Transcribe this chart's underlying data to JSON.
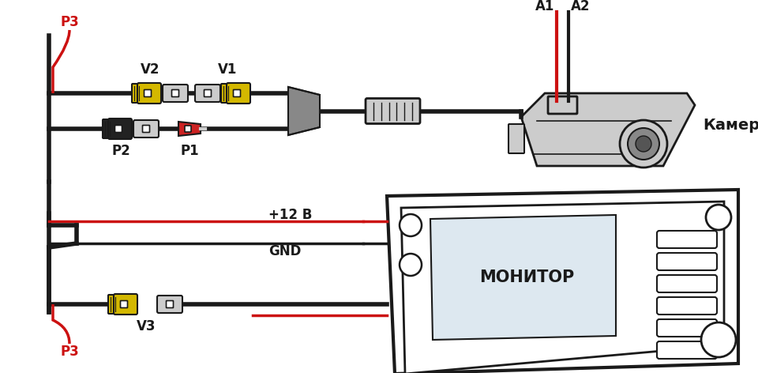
{
  "bg_color": "#ffffff",
  "lc": "#1a1a1a",
  "rc": "#cc1111",
  "yc": "#d4b800",
  "gc": "#999999",
  "lgc": "#cccccc",
  "blk": "#222222",
  "labels": {
    "P3_top": "P3",
    "V2": "V2",
    "V1": "V1",
    "P2": "P2",
    "P1": "P1",
    "A1": "A1",
    "A2": "A2",
    "camera": "Камера",
    "plus12": "+12 В",
    "gnd": "GND",
    "monitor": "МОНИТОР",
    "V3": "V3",
    "P3_bot": "P3"
  },
  "figsize": [
    9.6,
    4.72
  ],
  "dpi": 100
}
